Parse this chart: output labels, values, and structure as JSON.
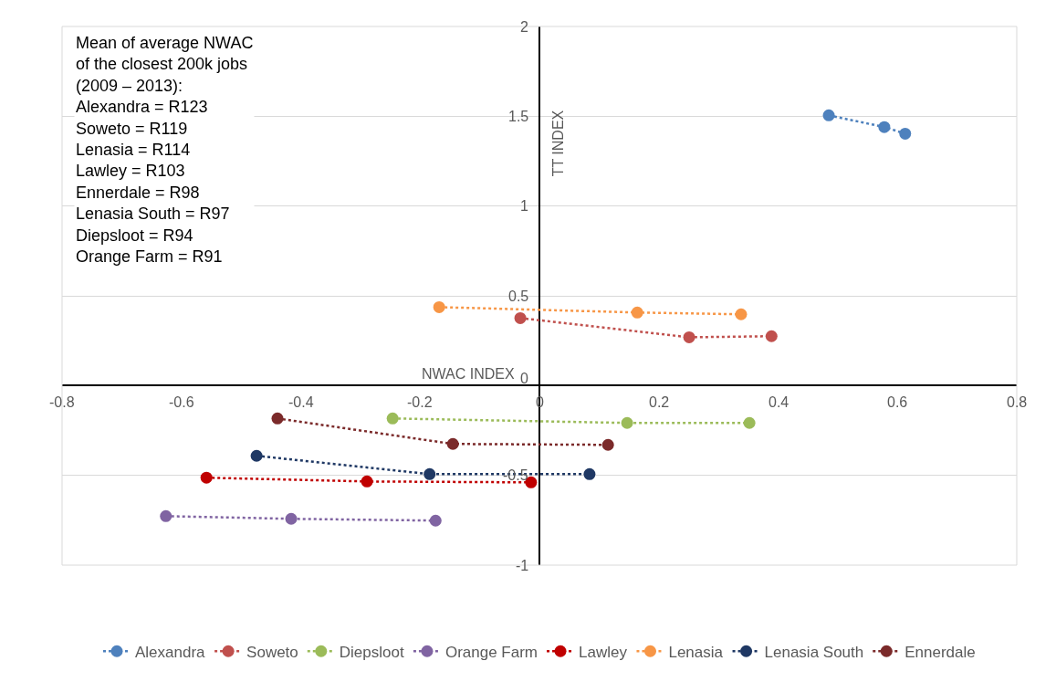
{
  "chart_data": {
    "type": "line",
    "xlabel": "NWAC INDEX",
    "ylabel": "TT INDEX",
    "annotations": [
      "Mean of average NWAC\nof the closest 200k jobs\n(2009 – 2013):\nAlexandra = R123\nSoweto = R119\nLenasia = R114\nLawley = R103\nEnnerdale = R98\nLenasia South = R97\nDiepsloot = R94\nOrange Farm = R91"
    ],
    "xlim": [
      -0.8,
      0.8
    ],
    "xticks": [
      -0.8,
      -0.6,
      -0.4,
      -0.2,
      0,
      0.2,
      0.4,
      0.6,
      0.8
    ],
    "ylim": [
      -1,
      2
    ],
    "yticks": [
      -1,
      -0.5,
      0,
      0.5,
      1,
      1.5,
      2
    ],
    "grid": "y",
    "legend": "bottom",
    "marker": "circle",
    "line_style": "dotted",
    "series": [
      {
        "name": "Alexandra",
        "color": "#4e81bd",
        "x": [
          0.485,
          0.578,
          0.613
        ],
        "values": [
          1.505,
          1.44,
          1.403
        ]
      },
      {
        "name": "Soweto",
        "color": "#c0504d",
        "x": [
          -0.032,
          0.251,
          0.389
        ],
        "values": [
          0.376,
          0.269,
          0.275
        ]
      },
      {
        "name": "Diepsloot",
        "color": "#9bbb59",
        "x": [
          -0.246,
          0.147,
          0.352
        ],
        "values": [
          -0.183,
          -0.208,
          -0.208
        ]
      },
      {
        "name": "Orange Farm",
        "color": "#8064a2",
        "x": [
          -0.626,
          -0.416,
          -0.174
        ],
        "values": [
          -0.727,
          -0.742,
          -0.752
        ]
      },
      {
        "name": "Lawley",
        "color": "#c00000",
        "x": [
          -0.558,
          -0.289,
          -0.014
        ],
        "values": [
          -0.513,
          -0.534,
          -0.539
        ]
      },
      {
        "name": "Lenasia",
        "color": "#f79646",
        "x": [
          -0.168,
          0.164,
          0.338
        ],
        "values": [
          0.437,
          0.407,
          0.397
        ]
      },
      {
        "name": "Lenasia South",
        "color": "#1f3864",
        "x": [
          -0.474,
          -0.184,
          0.084
        ],
        "values": [
          -0.391,
          -0.493,
          -0.493
        ]
      },
      {
        "name": "Ennerdale",
        "color": "#7b2a2a",
        "x": [
          -0.439,
          -0.145,
          0.115
        ],
        "values": [
          -0.183,
          -0.325,
          -0.33
        ]
      }
    ]
  }
}
